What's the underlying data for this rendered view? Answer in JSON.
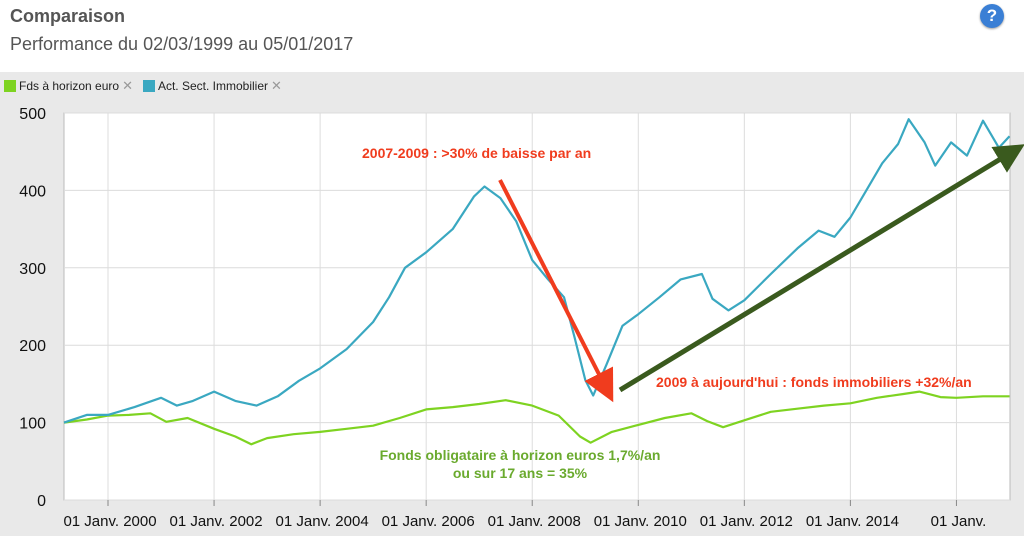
{
  "header": {
    "title": "Comparaison",
    "subtitle": "Performance du 02/03/1999 au 05/01/2017",
    "help_icon": "help-icon"
  },
  "legend": [
    {
      "label": "Fds à horizon euro",
      "color": "#7ed321",
      "remove_icon": "close-icon"
    },
    {
      "label": "Act. Sect. Immobilier",
      "color": "#3aa8c1",
      "remove_icon": "close-icon"
    }
  ],
  "annotations": {
    "crash": "2007-2009 : >30% de baisse par an",
    "recovery": "2009 à aujourd'hui : fonds immobiliers +32%/an",
    "bonds_line1": "Fonds obligataire à horizon euros 1,7%/an",
    "bonds_line2": "ou sur 17 ans = 35%"
  },
  "chart_data": {
    "type": "line",
    "title": "Comparaison",
    "subtitle": "Performance du 02/03/1999 au 05/01/2017",
    "xlim": [
      1999.17,
      2017.01
    ],
    "ylim": [
      0,
      500
    ],
    "yticks": [
      0,
      100,
      200,
      300,
      400,
      500
    ],
    "xticks": [
      {
        "value": 2000,
        "label": "01 Janv. 2000"
      },
      {
        "value": 2002,
        "label": "01 Janv. 2002"
      },
      {
        "value": 2004,
        "label": "01 Janv. 2004"
      },
      {
        "value": 2006,
        "label": "01 Janv. 2006"
      },
      {
        "value": 2008,
        "label": "01 Janv. 2008"
      },
      {
        "value": 2010,
        "label": "01 Janv. 2010"
      },
      {
        "value": 2012,
        "label": "01 Janv. 2012"
      },
      {
        "value": 2014,
        "label": "01 Janv. 2014"
      },
      {
        "value": 2016,
        "label": "01 Janv."
      }
    ],
    "grid": true,
    "legend_position": "top-left",
    "series": [
      {
        "name": "Fds à horizon euro",
        "color": "#7ed321",
        "points": [
          [
            1999.17,
            100
          ],
          [
            1999.6,
            104
          ],
          [
            2000.0,
            109
          ],
          [
            2000.4,
            110
          ],
          [
            2000.8,
            112
          ],
          [
            2001.1,
            101
          ],
          [
            2001.5,
            106
          ],
          [
            2002.0,
            92
          ],
          [
            2002.4,
            82
          ],
          [
            2002.7,
            72
          ],
          [
            2003.0,
            80
          ],
          [
            2003.5,
            85
          ],
          [
            2004.0,
            88
          ],
          [
            2004.5,
            92
          ],
          [
            2005.0,
            96
          ],
          [
            2005.5,
            106
          ],
          [
            2006.0,
            117
          ],
          [
            2006.5,
            120
          ],
          [
            2007.0,
            124
          ],
          [
            2007.5,
            129
          ],
          [
            2008.0,
            122
          ],
          [
            2008.5,
            109
          ],
          [
            2008.9,
            82
          ],
          [
            2009.1,
            74
          ],
          [
            2009.5,
            88
          ],
          [
            2010.0,
            97
          ],
          [
            2010.5,
            106
          ],
          [
            2011.0,
            112
          ],
          [
            2011.3,
            102
          ],
          [
            2011.6,
            94
          ],
          [
            2012.0,
            103
          ],
          [
            2012.5,
            114
          ],
          [
            2013.0,
            118
          ],
          [
            2013.5,
            122
          ],
          [
            2014.0,
            125
          ],
          [
            2014.5,
            132
          ],
          [
            2015.0,
            137
          ],
          [
            2015.3,
            140
          ],
          [
            2015.7,
            133
          ],
          [
            2016.0,
            132
          ],
          [
            2016.5,
            134
          ],
          [
            2017.0,
            134
          ]
        ]
      },
      {
        "name": "Act. Sect. Immobilier",
        "color": "#3aa8c1",
        "points": [
          [
            1999.17,
            100
          ],
          [
            1999.6,
            110
          ],
          [
            2000.0,
            110
          ],
          [
            2000.5,
            120
          ],
          [
            2001.0,
            132
          ],
          [
            2001.3,
            122
          ],
          [
            2001.6,
            128
          ],
          [
            2002.0,
            140
          ],
          [
            2002.4,
            128
          ],
          [
            2002.8,
            122
          ],
          [
            2003.2,
            134
          ],
          [
            2003.6,
            154
          ],
          [
            2004.0,
            170
          ],
          [
            2004.5,
            195
          ],
          [
            2005.0,
            230
          ],
          [
            2005.3,
            262
          ],
          [
            2005.6,
            300
          ],
          [
            2006.0,
            320
          ],
          [
            2006.5,
            350
          ],
          [
            2006.9,
            392
          ],
          [
            2007.1,
            405
          ],
          [
            2007.4,
            390
          ],
          [
            2007.7,
            360
          ],
          [
            2008.0,
            310
          ],
          [
            2008.3,
            285
          ],
          [
            2008.6,
            262
          ],
          [
            2008.8,
            210
          ],
          [
            2009.0,
            155
          ],
          [
            2009.15,
            135
          ],
          [
            2009.4,
            175
          ],
          [
            2009.7,
            225
          ],
          [
            2010.0,
            240
          ],
          [
            2010.4,
            262
          ],
          [
            2010.8,
            285
          ],
          [
            2011.2,
            292
          ],
          [
            2011.4,
            260
          ],
          [
            2011.7,
            245
          ],
          [
            2012.0,
            258
          ],
          [
            2012.5,
            292
          ],
          [
            2013.0,
            325
          ],
          [
            2013.4,
            348
          ],
          [
            2013.7,
            340
          ],
          [
            2014.0,
            365
          ],
          [
            2014.3,
            400
          ],
          [
            2014.6,
            435
          ],
          [
            2014.9,
            460
          ],
          [
            2015.1,
            492
          ],
          [
            2015.4,
            462
          ],
          [
            2015.6,
            432
          ],
          [
            2015.9,
            462
          ],
          [
            2016.2,
            445
          ],
          [
            2016.5,
            490
          ],
          [
            2016.8,
            455
          ],
          [
            2017.0,
            470
          ]
        ]
      }
    ]
  }
}
